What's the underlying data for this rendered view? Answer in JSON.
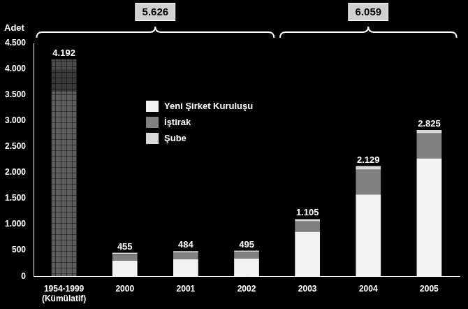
{
  "chart_data": {
    "type": "bar",
    "stacked": true,
    "grid": false,
    "legend": "center",
    "y_label": "Adet",
    "categories": [
      [
        "1954-1999",
        "(Kümülatif)"
      ],
      "2000",
      "2001",
      "2002",
      "2003",
      "2004",
      "2005"
    ],
    "series": [
      {
        "name": "Yeni Şirket Kuruluşu",
        "colors": [
          "#5c5c5c",
          "#f2f2f2",
          "#f2f2f2",
          "#f2f2f2",
          "#f2f2f2",
          "#f2f2f2",
          "#f2f2f2"
        ],
        "values": [
          3570,
          300,
          330,
          345,
          860,
          1580,
          2280
        ]
      },
      {
        "name": "İştirak",
        "colors": [
          "#3a3a3a",
          "#808080",
          "#808080",
          "#808080",
          "#808080",
          "#808080",
          "#808080"
        ],
        "values": [
          430,
          130,
          125,
          125,
          200,
          480,
          480
        ]
      },
      {
        "name": "Şube",
        "colors": [
          "#4c4c4c",
          "#d9d9d9",
          "#d9d9d9",
          "#d9d9d9",
          "#d9d9d9",
          "#d9d9d9",
          "#d9d9d9"
        ],
        "values": [
          192,
          25,
          29,
          25,
          45,
          69,
          65
        ]
      }
    ],
    "totals": [
      4192,
      455,
      484,
      495,
      1105,
      2129,
      2825
    ],
    "total_labels": [
      "4.192",
      "455",
      "484",
      "495",
      "1.105",
      "2.129",
      "2.825"
    ],
    "groups": [
      {
        "value": 5626,
        "label": "5.626",
        "from": 0,
        "to": 3
      },
      {
        "value": 6059,
        "label": "6.059",
        "from": 4,
        "to": 6
      }
    ],
    "ylim": [
      0,
      4500
    ],
    "yticks": [
      0,
      500,
      {
        "value": 1000,
        "label": "1.000"
      },
      {
        "value": 1500,
        "label": "1.500"
      },
      {
        "value": 2000,
        "label": "2.000"
      },
      {
        "value": 2500,
        "label": "2.500"
      },
      {
        "value": 3000,
        "label": "3.000"
      },
      {
        "value": 3500,
        "label": "3.500"
      },
      {
        "value": 4000,
        "label": "4.000"
      },
      {
        "value": 4500,
        "label": "4.500"
      }
    ]
  }
}
